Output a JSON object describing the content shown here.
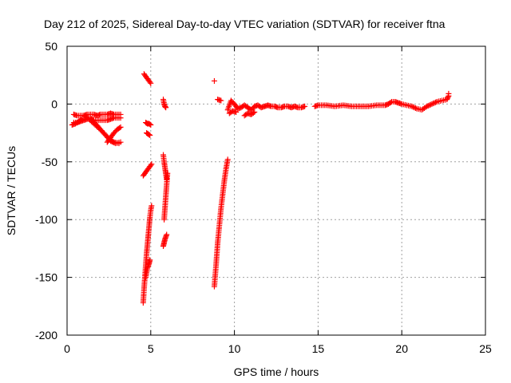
{
  "chart_data": {
    "type": "scatter",
    "title": "Day 212 of 2025, Sidereal Day-to-day VTEC variation (SDTVAR) for receiver ftna",
    "xlabel": "GPS time / hours",
    "ylabel": "SDTVAR / TECUs",
    "xlim": [
      0,
      25
    ],
    "ylim": [
      -200,
      50
    ],
    "xticks": [
      0,
      5,
      10,
      15,
      20,
      25
    ],
    "yticks": [
      -200,
      -150,
      -100,
      -50,
      0,
      50
    ],
    "xtick_labels": [
      "0",
      "5",
      "10",
      "15",
      "20",
      "25"
    ],
    "ytick_labels": [
      "-200",
      "-150",
      "-100",
      "-50",
      "0",
      "50"
    ],
    "grid": true,
    "marker": "+",
    "color": "#ff0000",
    "series": [
      {
        "name": "SDTVAR",
        "segments": [
          {
            "x": [
              0.4,
              0.6,
              0.8,
              1.0,
              1.2,
              1.4,
              1.6,
              1.8,
              2.0,
              2.2,
              2.4,
              2.6,
              2.8,
              3.0,
              3.2
            ],
            "y": [
              -9,
              -10,
              -10,
              -10,
              -9,
              -9,
              -9,
              -10,
              -9,
              -9,
              -9,
              -8,
              -9,
              -9,
              -9
            ]
          },
          {
            "x": [
              0.4,
              0.6,
              0.8,
              1.0,
              1.2,
              1.4,
              1.6,
              1.8,
              2.0,
              2.2,
              2.4,
              2.6,
              2.8,
              3.0,
              3.2
            ],
            "y": [
              -16,
              -16,
              -15,
              -14,
              -13,
              -13,
              -14,
              -14,
              -14,
              -14,
              -14,
              -13,
              -12,
              -12,
              -12
            ]
          },
          {
            "x": [
              1.0,
              1.3,
              1.6,
              1.9,
              2.2,
              2.5,
              2.8,
              3.1
            ],
            "y": [
              -10,
              -13,
              -17,
              -21,
              -25,
              -30,
              -33,
              -34
            ]
          },
          {
            "x": [
              1.4,
              1.7,
              2.0,
              2.3,
              2.6,
              2.9,
              3.2
            ],
            "y": [
              -12,
              -17,
              -22,
              -27,
              -32,
              -34,
              -33
            ]
          },
          {
            "x": [
              2.4,
              2.6,
              2.8,
              3.0,
              3.2
            ],
            "y": [
              -33,
              -29,
              -25,
              -22,
              -20
            ]
          },
          {
            "x": [
              0.3,
              0.5,
              0.7,
              0.9
            ],
            "y": [
              -18,
              -17,
              -15,
              -13
            ]
          },
          {
            "x": [
              4.6,
              4.7,
              4.8,
              4.9,
              5.0
            ],
            "y": [
              26,
              24,
              22,
              20,
              18
            ]
          },
          {
            "x": [
              4.7,
              4.8,
              4.9,
              5.0
            ],
            "y": [
              -16,
              -17,
              -17,
              -18
            ]
          },
          {
            "x": [
              4.75,
              4.85,
              4.95
            ],
            "y": [
              -25,
              -26,
              -27
            ]
          },
          {
            "x": [
              4.55,
              4.65,
              4.75,
              4.85,
              4.95,
              5.05
            ],
            "y": [
              -62,
              -60,
              -58,
              -56,
              -54,
              -52
            ]
          },
          {
            "x": [
              4.55,
              4.6,
              4.65,
              4.7,
              4.75,
              4.8,
              4.85,
              4.9,
              4.95,
              5.0,
              5.05
            ],
            "y": [
              -172,
              -160,
              -150,
              -140,
              -130,
              -122,
              -114,
              -106,
              -98,
              -92,
              -88
            ]
          },
          {
            "x": [
              4.7,
              4.75,
              4.8,
              4.85,
              4.9,
              4.95
            ],
            "y": [
              -150,
              -146,
              -142,
              -140,
              -138,
              -135
            ]
          },
          {
            "x": [
              5.75,
              5.8,
              5.85,
              5.9
            ],
            "y": [
              4,
              0,
              -2,
              -3
            ]
          },
          {
            "x": [
              5.75,
              5.8,
              5.85,
              5.9,
              5.95
            ],
            "y": [
              -44,
              -50,
              -55,
              -60,
              -65
            ]
          },
          {
            "x": [
              5.8,
              5.85,
              5.9,
              5.95,
              6.0
            ],
            "y": [
              -100,
              -90,
              -80,
              -70,
              -60
            ]
          },
          {
            "x": [
              5.75,
              5.8,
              5.85,
              5.9,
              5.95
            ],
            "y": [
              -123,
              -120,
              -117,
              -115,
              -113
            ]
          },
          {
            "x": [
              8.8
            ],
            "y": [
              20
            ]
          },
          {
            "x": [
              9.0,
              9.2
            ],
            "y": [
              4,
              3
            ]
          },
          {
            "x": [
              8.8,
              8.9,
              9.0,
              9.1,
              9.2,
              9.3,
              9.4,
              9.5,
              9.6
            ],
            "y": [
              -158,
              -140,
              -120,
              -105,
              -90,
              -78,
              -66,
              -56,
              -48
            ]
          },
          {
            "x": [
              9.6,
              9.8,
              10.0,
              10.2,
              10.4,
              10.6,
              10.8,
              11.0,
              11.2,
              11.4,
              11.6,
              11.8,
              12.0,
              12.2,
              12.4,
              12.6,
              12.8,
              13.0,
              13.2,
              13.4,
              13.6,
              13.8,
              14.0,
              14.2
            ],
            "y": [
              -5,
              3,
              0,
              -4,
              -3,
              -1,
              -3,
              -5,
              -2,
              -1,
              -3,
              -2,
              -1,
              -2,
              -2,
              -3,
              -3,
              -2,
              -2,
              -3,
              -2,
              -3,
              -3,
              -2
            ]
          },
          {
            "x": [
              9.7,
              9.9,
              10.1
            ],
            "y": [
              -8,
              -6,
              -7
            ]
          },
          {
            "x": [
              10.6,
              10.8,
              11.0,
              11.2
            ],
            "y": [
              -10,
              -8,
              -9,
              -7
            ]
          },
          {
            "x": [
              14.8,
              15.0,
              15.5,
              16.0,
              16.5,
              17.0,
              17.5,
              18.0,
              18.5,
              19.0,
              19.2,
              19.4,
              19.6,
              19.8,
              20.0,
              20.3,
              20.6,
              20.9,
              21.2,
              21.5,
              21.8,
              22.1,
              22.4,
              22.7,
              22.8
            ],
            "y": [
              -2,
              -1,
              -1,
              -2,
              -1,
              -2,
              -2,
              -2,
              -1,
              -1,
              0,
              2,
              2,
              1,
              0,
              -1,
              -2,
              -4,
              -5,
              -2,
              0,
              2,
              3,
              4,
              7
            ]
          },
          {
            "x": [
              22.8
            ],
            "y": [
              9
            ]
          }
        ]
      }
    ]
  }
}
